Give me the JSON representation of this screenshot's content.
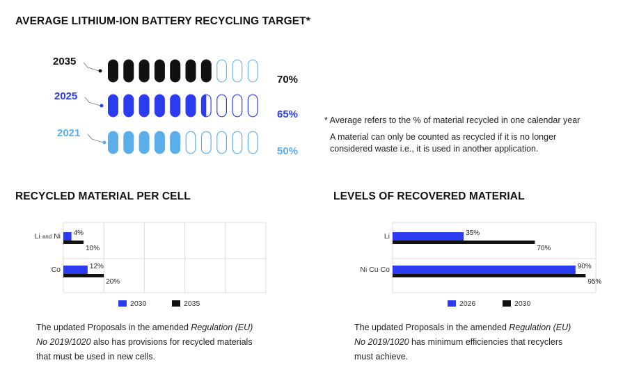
{
  "main_title": "AVERAGE LITHIUM-ION BATTERY RECYCLING TARGET*",
  "targets": [
    {
      "year": "2035",
      "percent_label": "70%",
      "value": 70,
      "color": "#111111"
    },
    {
      "year": "2025",
      "percent_label": "65%",
      "value": 65,
      "color": "#2b3cf0"
    },
    {
      "year": "2021",
      "percent_label": "50%",
      "value": 50,
      "color": "#5aaee9"
    }
  ],
  "notes": {
    "line1": "* Average refers to the % of material recycled in one calendar year",
    "line2": "A material can only be counted as recycled if it is no longer",
    "line3": "considered waste i.e., it is used in another application."
  },
  "left_title": "RECYCLED MATERIAL PER CELL",
  "right_title": "LEVELS OF RECOVERED MATERIAL",
  "left_caption": {
    "line1_pre": "The updated Proposals in the amended ",
    "line1_italic": "Regulation (EU)",
    "line2_italic": "No 2019/1020",
    "line2_post": " also has provisions for recycled materials",
    "line3": "that must be used in new cells."
  },
  "right_caption": {
    "line1_pre": "The updated Proposals in the amended ",
    "line1_italic": "Regulation (EU)",
    "line2_italic": "No 2019/1020",
    "line2_post": " has minimum efficiencies that recyclers",
    "line3": "must achieve."
  },
  "colors": {
    "blue": "#2b3cf0",
    "black": "#111111",
    "light_blue": "#5aaee9",
    "grid": "#d6d6d6"
  },
  "chart_data": [
    {
      "type": "bar",
      "orientation": "horizontal",
      "categories": [
        "Li and Ni",
        "Co"
      ],
      "category_labels": [
        [
          "Li ",
          "and",
          " Ni"
        ],
        [
          "Co"
        ]
      ],
      "xlim": [
        0,
        100
      ],
      "grid": true,
      "legend": "bottom",
      "series": [
        {
          "name": "2030",
          "values": [
            4,
            12
          ],
          "labels": [
            "4%",
            "12%"
          ],
          "color": "#2b3cf0"
        },
        {
          "name": "2035",
          "values": [
            10,
            20
          ],
          "labels": [
            "10%",
            "20%"
          ],
          "color": "#111111"
        }
      ]
    },
    {
      "type": "bar",
      "orientation": "horizontal",
      "categories": [
        "Li",
        "Ni  Cu Co"
      ],
      "category_labels": [
        [
          "Li"
        ],
        [
          "Ni  Cu Co"
        ]
      ],
      "xlim": [
        0,
        100
      ],
      "grid": true,
      "legend": "bottom",
      "series": [
        {
          "name": "2026",
          "values": [
            35,
            90
          ],
          "labels": [
            "35%",
            "90%"
          ],
          "color": "#2b3cf0"
        },
        {
          "name": "2030",
          "values": [
            70,
            95
          ],
          "labels": [
            "70%",
            "95%"
          ],
          "color": "#111111"
        }
      ]
    }
  ]
}
